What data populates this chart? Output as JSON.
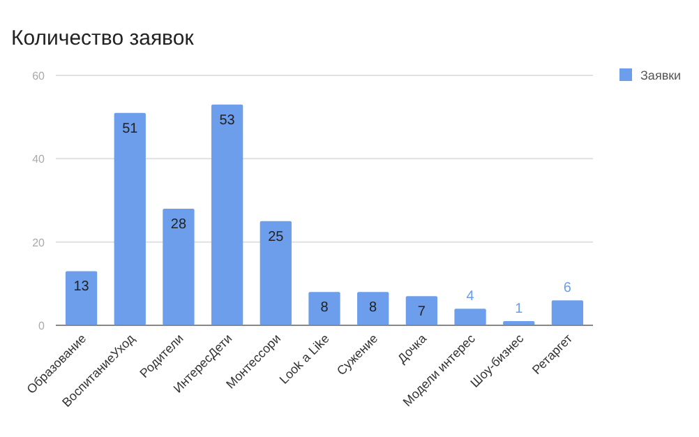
{
  "chart_data": {
    "type": "bar",
    "title": "Количество заявок",
    "categories": [
      "Образование",
      "ВоспитаниеУход",
      "Родители",
      "ИнтересДети",
      "Монтессори",
      "Look a Like",
      "Сужение",
      "Дочка",
      "Модели интерес",
      "Шоу-бизнес",
      "Ретаргет"
    ],
    "series": [
      {
        "name": "Заявки",
        "color": "#6d9eeb",
        "values": [
          13,
          51,
          28,
          53,
          25,
          8,
          8,
          7,
          4,
          1,
          6
        ]
      }
    ],
    "ylim": [
      0,
      60
    ],
    "yticks": [
      0,
      20,
      40,
      60
    ],
    "grid": "y",
    "legend": "top right",
    "data_labels": true
  }
}
